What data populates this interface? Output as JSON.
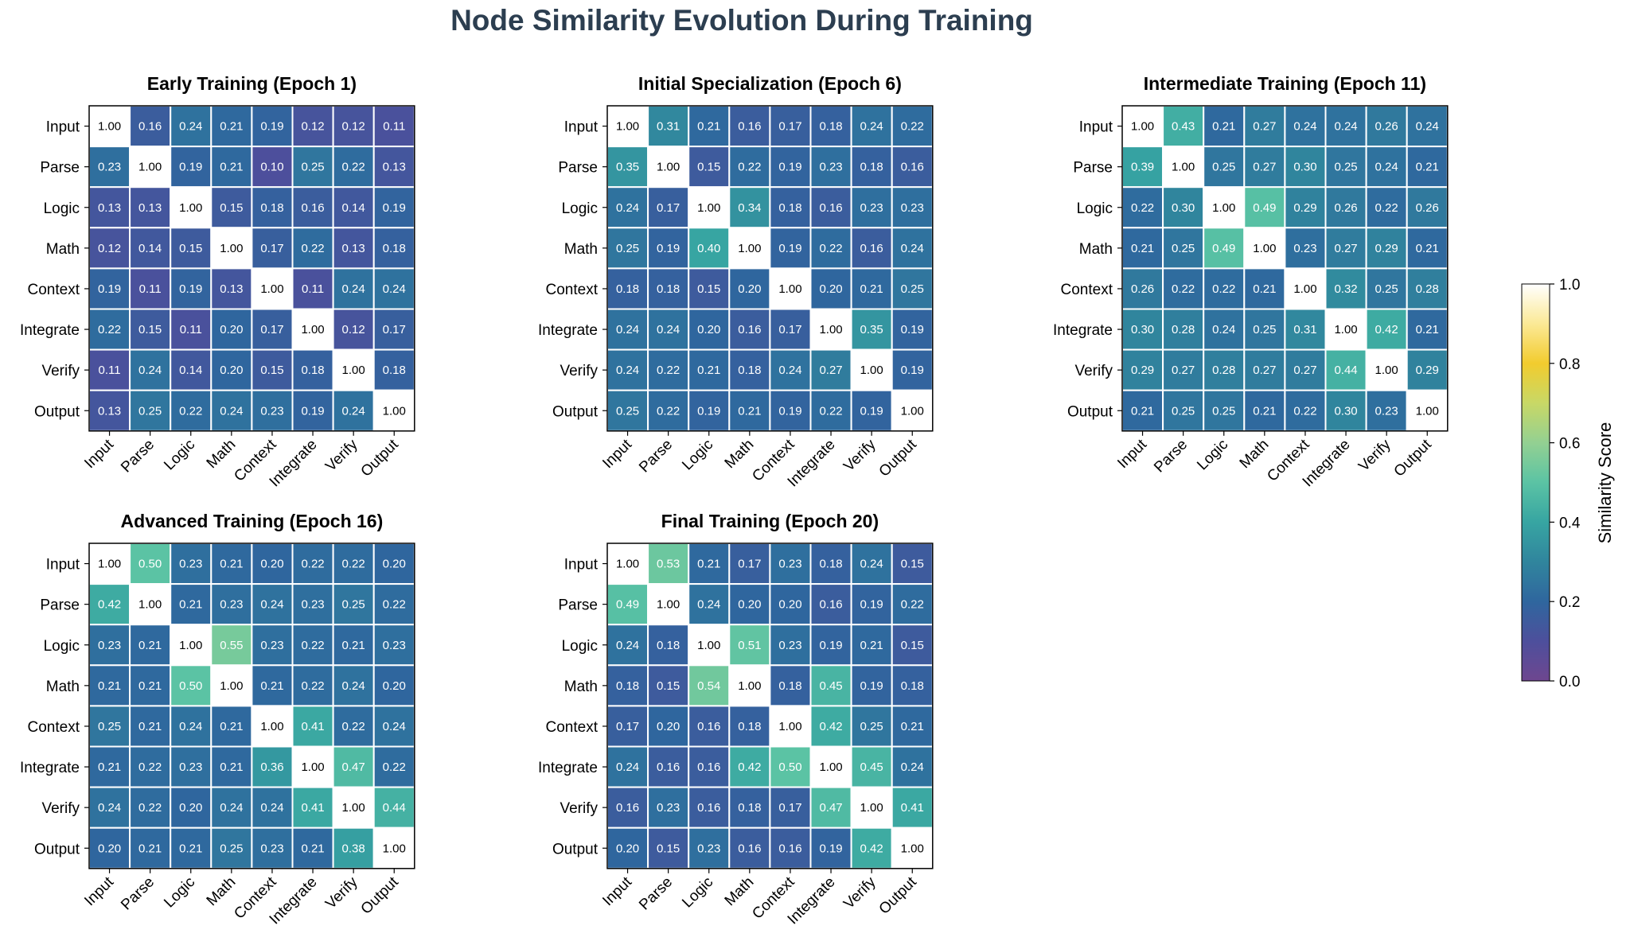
{
  "figure_title": "Node Similarity Evolution During Training",
  "colorbar": {
    "label": "Similarity Score",
    "ticks": [
      "0.0",
      "0.2",
      "0.4",
      "0.6",
      "0.8",
      "1.0"
    ],
    "range": [
      0,
      1
    ],
    "colormap": "viridis-lightened"
  },
  "chart_data": [
    {
      "type": "heatmap",
      "title": "Early Training (Epoch 1)",
      "rows": [
        "Input",
        "Parse",
        "Logic",
        "Math",
        "Context",
        "Integrate",
        "Verify",
        "Output"
      ],
      "cols": [
        "Input",
        "Parse",
        "Logic",
        "Math",
        "Context",
        "Integrate",
        "Verify",
        "Output"
      ],
      "values": [
        [
          1.0,
          0.16,
          0.24,
          0.21,
          0.19,
          0.12,
          0.12,
          0.11
        ],
        [
          0.23,
          1.0,
          0.19,
          0.21,
          0.1,
          0.25,
          0.22,
          0.13
        ],
        [
          0.13,
          0.13,
          1.0,
          0.15,
          0.18,
          0.16,
          0.14,
          0.19
        ],
        [
          0.12,
          0.14,
          0.15,
          1.0,
          0.17,
          0.22,
          0.13,
          0.18
        ],
        [
          0.19,
          0.11,
          0.19,
          0.13,
          1.0,
          0.11,
          0.24,
          0.24
        ],
        [
          0.22,
          0.15,
          0.11,
          0.2,
          0.17,
          1.0,
          0.12,
          0.17
        ],
        [
          0.11,
          0.24,
          0.14,
          0.2,
          0.15,
          0.18,
          1.0,
          0.18
        ],
        [
          0.13,
          0.25,
          0.22,
          0.24,
          0.23,
          0.19,
          0.24,
          1.0
        ]
      ]
    },
    {
      "type": "heatmap",
      "title": "Initial Specialization (Epoch 6)",
      "rows": [
        "Input",
        "Parse",
        "Logic",
        "Math",
        "Context",
        "Integrate",
        "Verify",
        "Output"
      ],
      "cols": [
        "Input",
        "Parse",
        "Logic",
        "Math",
        "Context",
        "Integrate",
        "Verify",
        "Output"
      ],
      "values": [
        [
          1.0,
          0.31,
          0.21,
          0.16,
          0.17,
          0.18,
          0.24,
          0.22
        ],
        [
          0.35,
          1.0,
          0.15,
          0.22,
          0.19,
          0.23,
          0.18,
          0.16
        ],
        [
          0.24,
          0.17,
          1.0,
          0.34,
          0.18,
          0.16,
          0.23,
          0.23
        ],
        [
          0.25,
          0.19,
          0.4,
          1.0,
          0.19,
          0.22,
          0.16,
          0.24
        ],
        [
          0.18,
          0.18,
          0.15,
          0.2,
          1.0,
          0.2,
          0.21,
          0.25
        ],
        [
          0.24,
          0.24,
          0.2,
          0.16,
          0.17,
          1.0,
          0.35,
          0.19
        ],
        [
          0.24,
          0.22,
          0.21,
          0.18,
          0.24,
          0.27,
          1.0,
          0.19
        ],
        [
          0.25,
          0.22,
          0.19,
          0.21,
          0.19,
          0.22,
          0.19,
          1.0
        ]
      ]
    },
    {
      "type": "heatmap",
      "title": "Intermediate Training (Epoch 11)",
      "rows": [
        "Input",
        "Parse",
        "Logic",
        "Math",
        "Context",
        "Integrate",
        "Verify",
        "Output"
      ],
      "cols": [
        "Input",
        "Parse",
        "Logic",
        "Math",
        "Context",
        "Integrate",
        "Verify",
        "Output"
      ],
      "values": [
        [
          1.0,
          0.43,
          0.21,
          0.27,
          0.24,
          0.24,
          0.26,
          0.24
        ],
        [
          0.39,
          1.0,
          0.25,
          0.27,
          0.3,
          0.25,
          0.24,
          0.21
        ],
        [
          0.22,
          0.3,
          1.0,
          0.49,
          0.29,
          0.26,
          0.22,
          0.26
        ],
        [
          0.21,
          0.25,
          0.49,
          1.0,
          0.23,
          0.27,
          0.29,
          0.21
        ],
        [
          0.26,
          0.22,
          0.22,
          0.21,
          1.0,
          0.32,
          0.25,
          0.28
        ],
        [
          0.3,
          0.28,
          0.24,
          0.25,
          0.31,
          1.0,
          0.42,
          0.21
        ],
        [
          0.29,
          0.27,
          0.28,
          0.27,
          0.27,
          0.44,
          1.0,
          0.29
        ],
        [
          0.21,
          0.25,
          0.25,
          0.21,
          0.22,
          0.3,
          0.23,
          1.0
        ]
      ]
    },
    {
      "type": "heatmap",
      "title": "Advanced Training (Epoch 16)",
      "rows": [
        "Input",
        "Parse",
        "Logic",
        "Math",
        "Context",
        "Integrate",
        "Verify",
        "Output"
      ],
      "cols": [
        "Input",
        "Parse",
        "Logic",
        "Math",
        "Context",
        "Integrate",
        "Verify",
        "Output"
      ],
      "values": [
        [
          1.0,
          0.5,
          0.23,
          0.21,
          0.2,
          0.22,
          0.22,
          0.2
        ],
        [
          0.42,
          1.0,
          0.21,
          0.23,
          0.24,
          0.23,
          0.25,
          0.22
        ],
        [
          0.23,
          0.21,
          1.0,
          0.55,
          0.23,
          0.22,
          0.21,
          0.23
        ],
        [
          0.21,
          0.21,
          0.5,
          1.0,
          0.21,
          0.22,
          0.24,
          0.2
        ],
        [
          0.25,
          0.21,
          0.24,
          0.21,
          1.0,
          0.41,
          0.22,
          0.24
        ],
        [
          0.21,
          0.22,
          0.23,
          0.21,
          0.36,
          1.0,
          0.47,
          0.22
        ],
        [
          0.24,
          0.22,
          0.2,
          0.24,
          0.24,
          0.41,
          1.0,
          0.44
        ],
        [
          0.2,
          0.21,
          0.21,
          0.25,
          0.23,
          0.21,
          0.38,
          1.0
        ]
      ]
    },
    {
      "type": "heatmap",
      "title": "Final Training (Epoch 20)",
      "rows": [
        "Input",
        "Parse",
        "Logic",
        "Math",
        "Context",
        "Integrate",
        "Verify",
        "Output"
      ],
      "cols": [
        "Input",
        "Parse",
        "Logic",
        "Math",
        "Context",
        "Integrate",
        "Verify",
        "Output"
      ],
      "values": [
        [
          1.0,
          0.53,
          0.21,
          0.17,
          0.23,
          0.18,
          0.24,
          0.15
        ],
        [
          0.49,
          1.0,
          0.24,
          0.2,
          0.2,
          0.16,
          0.19,
          0.22
        ],
        [
          0.24,
          0.18,
          1.0,
          0.51,
          0.23,
          0.19,
          0.21,
          0.15
        ],
        [
          0.18,
          0.15,
          0.54,
          1.0,
          0.18,
          0.45,
          0.19,
          0.18
        ],
        [
          0.17,
          0.2,
          0.16,
          0.18,
          1.0,
          0.42,
          0.25,
          0.21
        ],
        [
          0.24,
          0.16,
          0.16,
          0.42,
          0.5,
          1.0,
          0.45,
          0.24
        ],
        [
          0.16,
          0.23,
          0.16,
          0.18,
          0.17,
          0.47,
          1.0,
          0.41
        ],
        [
          0.2,
          0.15,
          0.23,
          0.16,
          0.16,
          0.19,
          0.42,
          1.0
        ]
      ]
    }
  ]
}
